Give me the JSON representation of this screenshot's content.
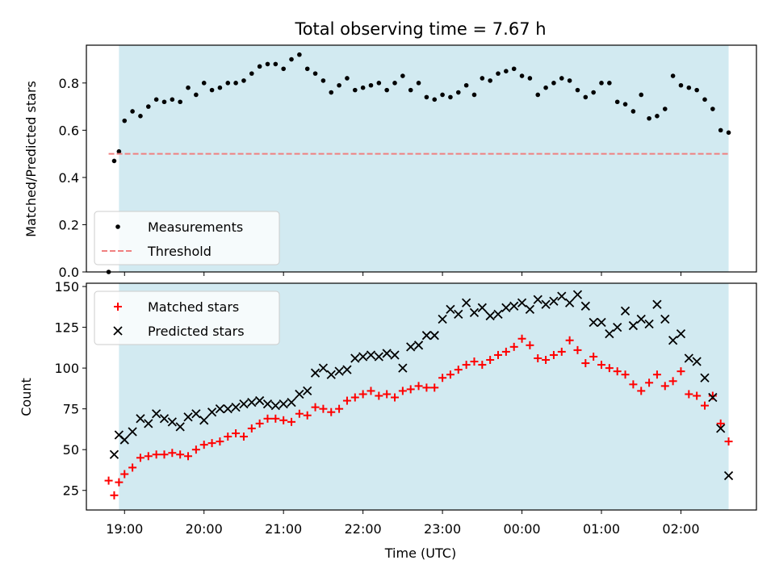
{
  "chart_data": {
    "title": "Total observing time = 7.67 h",
    "xlabel": "Time (UTC)",
    "x_ticks": [
      "19:00",
      "20:00",
      "21:00",
      "22:00",
      "23:00",
      "00:00",
      "01:00",
      "02:00"
    ],
    "observing_window": {
      "start_hours": 18.93,
      "end_hours": 26.6,
      "color": "#add8e6"
    },
    "panels": [
      {
        "type": "scatter",
        "ylabel": "Matched/Predicted stars",
        "ylim": [
          0,
          0.96
        ],
        "yticks": [
          0.0,
          0.2,
          0.4,
          0.6,
          0.8
        ],
        "legend_position": "lower-left",
        "series": [
          {
            "name": "Measurements",
            "marker": "dot",
            "color": "#000000",
            "x": [
              18.8,
              18.87,
              18.93,
              19.0,
              19.1,
              19.2,
              19.3,
              19.4,
              19.5,
              19.6,
              19.7,
              19.8,
              19.9,
              20.0,
              20.1,
              20.2,
              20.3,
              20.4,
              20.5,
              20.6,
              20.7,
              20.8,
              20.9,
              21.0,
              21.1,
              21.2,
              21.3,
              21.4,
              21.5,
              21.6,
              21.7,
              21.8,
              21.9,
              22.0,
              22.1,
              22.2,
              22.3,
              22.4,
              22.5,
              22.6,
              22.7,
              22.8,
              22.9,
              23.0,
              23.1,
              23.2,
              23.3,
              23.4,
              23.5,
              23.6,
              23.7,
              23.8,
              23.9,
              24.0,
              24.1,
              24.2,
              24.3,
              24.4,
              24.5,
              24.6,
              24.7,
              24.8,
              24.9,
              25.0,
              25.1,
              25.2,
              25.3,
              25.4,
              25.5,
              25.6,
              25.7,
              25.8,
              25.9,
              26.0,
              26.1,
              26.2,
              26.3,
              26.4,
              26.5,
              26.6
            ],
            "y": [
              0.0,
              0.47,
              0.51,
              0.64,
              0.68,
              0.66,
              0.7,
              0.73,
              0.72,
              0.73,
              0.72,
              0.78,
              0.75,
              0.8,
              0.77,
              0.78,
              0.8,
              0.8,
              0.81,
              0.84,
              0.87,
              0.88,
              0.88,
              0.86,
              0.9,
              0.92,
              0.86,
              0.84,
              0.81,
              0.76,
              0.79,
              0.82,
              0.77,
              0.78,
              0.79,
              0.8,
              0.77,
              0.8,
              0.83,
              0.77,
              0.8,
              0.74,
              0.73,
              0.75,
              0.74,
              0.76,
              0.79,
              0.75,
              0.82,
              0.81,
              0.84,
              0.85,
              0.86,
              0.83,
              0.82,
              0.75,
              0.78,
              0.8,
              0.82,
              0.81,
              0.77,
              0.74,
              0.76,
              0.8,
              0.8,
              0.72,
              0.71,
              0.68,
              0.75,
              0.65,
              0.66,
              0.69,
              0.83,
              0.79,
              0.78,
              0.77,
              0.73,
              0.69,
              0.6,
              0.59
            ]
          },
          {
            "name": "Threshold",
            "marker": "dashed-line",
            "color": "#f08080",
            "x": [
              18.8,
              26.6
            ],
            "y": [
              0.5,
              0.5
            ]
          }
        ]
      },
      {
        "type": "scatter",
        "ylabel": "Count",
        "ylim": [
          13,
          152
        ],
        "yticks": [
          25,
          50,
          75,
          100,
          125,
          150
        ],
        "legend_position": "upper-left",
        "series": [
          {
            "name": "Matched stars",
            "marker": "plus",
            "color": "#ff0000",
            "x": [
              18.8,
              18.87,
              18.93,
              19.0,
              19.1,
              19.2,
              19.3,
              19.4,
              19.5,
              19.6,
              19.7,
              19.8,
              19.9,
              20.0,
              20.1,
              20.2,
              20.3,
              20.4,
              20.5,
              20.6,
              20.7,
              20.8,
              20.9,
              21.0,
              21.1,
              21.2,
              21.3,
              21.4,
              21.5,
              21.6,
              21.7,
              21.8,
              21.9,
              22.0,
              22.1,
              22.2,
              22.3,
              22.4,
              22.5,
              22.6,
              22.7,
              22.8,
              22.9,
              23.0,
              23.1,
              23.2,
              23.3,
              23.4,
              23.5,
              23.6,
              23.7,
              23.8,
              23.9,
              24.0,
              24.1,
              24.2,
              24.3,
              24.4,
              24.5,
              24.6,
              24.7,
              24.8,
              24.9,
              25.0,
              25.1,
              25.2,
              25.3,
              25.4,
              25.5,
              25.6,
              25.7,
              25.8,
              25.9,
              26.0,
              26.1,
              26.2,
              26.3,
              26.4,
              26.5,
              26.6
            ],
            "y": [
              31,
              22,
              30,
              35,
              39,
              45,
              46,
              47,
              47,
              48,
              47,
              46,
              50,
              53,
              54,
              55,
              58,
              60,
              58,
              63,
              66,
              69,
              69,
              68,
              67,
              72,
              71,
              76,
              75,
              73,
              75,
              80,
              82,
              84,
              86,
              83,
              84,
              82,
              86,
              87,
              89,
              88,
              88,
              94,
              96,
              99,
              102,
              104,
              102,
              105,
              108,
              110,
              113,
              118,
              114,
              106,
              105,
              108,
              110,
              117,
              111,
              103,
              107,
              102,
              100,
              98,
              96,
              90,
              86,
              91,
              96,
              89,
              92,
              98,
              84,
              83,
              77,
              83,
              66,
              55
            ]
          },
          {
            "name": "Predicted stars",
            "marker": "x",
            "color": "#000000",
            "x": [
              18.87,
              18.93,
              19.0,
              19.1,
              19.2,
              19.3,
              19.4,
              19.5,
              19.6,
              19.7,
              19.8,
              19.9,
              20.0,
              20.1,
              20.2,
              20.3,
              20.4,
              20.5,
              20.6,
              20.7,
              20.8,
              20.9,
              21.0,
              21.1,
              21.2,
              21.3,
              21.4,
              21.5,
              21.6,
              21.7,
              21.8,
              21.9,
              22.0,
              22.1,
              22.2,
              22.3,
              22.4,
              22.5,
              22.6,
              22.7,
              22.8,
              22.9,
              23.0,
              23.1,
              23.2,
              23.3,
              23.4,
              23.5,
              23.6,
              23.7,
              23.8,
              23.9,
              24.0,
              24.1,
              24.2,
              24.3,
              24.4,
              24.5,
              24.6,
              24.7,
              24.8,
              24.9,
              25.0,
              25.1,
              25.2,
              25.3,
              25.4,
              25.5,
              25.6,
              25.7,
              25.8,
              25.9,
              26.0,
              26.1,
              26.2,
              26.3,
              26.4,
              26.5,
              26.6
            ],
            "y": [
              47,
              59,
              56,
              61,
              69,
              66,
              72,
              69,
              67,
              64,
              70,
              72,
              68,
              73,
              75,
              75,
              76,
              78,
              79,
              80,
              78,
              77,
              78,
              79,
              84,
              86,
              97,
              100,
              96,
              98,
              99,
              106,
              107,
              108,
              107,
              109,
              108,
              100,
              113,
              114,
              120,
              120,
              130,
              136,
              133,
              140,
              134,
              137,
              132,
              133,
              137,
              138,
              140,
              136,
              142,
              139,
              141,
              144,
              140,
              145,
              138,
              128,
              128,
              121,
              125,
              135,
              126,
              130,
              127,
              139,
              130,
              117,
              121,
              106,
              104,
              94,
              82,
              63,
              34
            ]
          }
        ]
      }
    ]
  }
}
